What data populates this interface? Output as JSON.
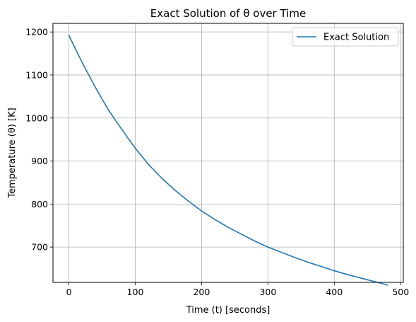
{
  "chart_data": {
    "type": "line",
    "title": "Exact Solution of θ over Time",
    "xlabel": "Time (t) [seconds]",
    "ylabel": "Temperature (θ) [K]",
    "xlim": [
      -24,
      504
    ],
    "ylim": [
      618,
      1220
    ],
    "xticks": [
      0,
      100,
      200,
      300,
      400,
      500
    ],
    "yticks": [
      700,
      800,
      900,
      1000,
      1100,
      1200
    ],
    "grid": true,
    "legend_position": "top-right",
    "series": [
      {
        "name": "Exact Solution",
        "color": "#1f77b4",
        "x": [
          0,
          10,
          20,
          30,
          40,
          50,
          60,
          70,
          80,
          90,
          100,
          120,
          140,
          160,
          180,
          200,
          220,
          240,
          260,
          280,
          300,
          320,
          340,
          360,
          380,
          400,
          420,
          440,
          460,
          480
        ],
        "y": [
          1192,
          1160,
          1129,
          1100,
          1071,
          1044,
          1018,
          995,
          973,
          951,
          930,
          892,
          860,
          832,
          807,
          784,
          764,
          746,
          730,
          714,
          700,
          688,
          676,
          665,
          655,
          645,
          636,
          628,
          620,
          612
        ]
      }
    ]
  }
}
